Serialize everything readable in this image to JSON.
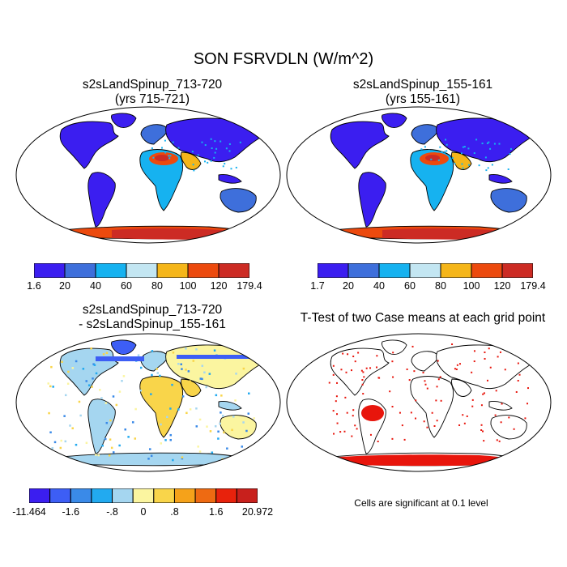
{
  "title": "SON FSRVDLN (W/m^2)",
  "panels": [
    {
      "id": "p1",
      "title_line1": "s2sLandSpinup_713-720",
      "title_line2": "(yrs 715-721)",
      "field": "FSRVDLN case 1"
    },
    {
      "id": "p2",
      "title_line1": "s2sLandSpinup_155-161",
      "title_line2": "(yrs 155-161)",
      "field": "FSRVDLN case 2"
    },
    {
      "id": "p3",
      "title_line1": "s2sLandSpinup_713-720",
      "title_line2": "- s2sLandSpinup_155-161",
      "field": "difference"
    },
    {
      "id": "p4",
      "title_line1": "T-Test of two Case means at each grid point",
      "title_line2": "",
      "field": "significance"
    }
  ],
  "colorbars": {
    "cb1": {
      "colors": [
        "#3b1ef0",
        "#3e6fdb",
        "#16b2f0",
        "#c3e6f2",
        "#f5b61a",
        "#ec4a0e",
        "#cc2b24"
      ],
      "labels": [
        "1.6",
        "20",
        "40",
        "60",
        "80",
        "100",
        "120",
        "179.4"
      ]
    },
    "cb2": {
      "colors": [
        "#3b1ef0",
        "#3e6fdb",
        "#16b2f0",
        "#c3e6f2",
        "#f5b61a",
        "#ec4a0e",
        "#cc2b24"
      ],
      "labels": [
        "1.7",
        "20",
        "40",
        "60",
        "80",
        "100",
        "120",
        "179.4"
      ]
    },
    "cb3": {
      "colors": [
        "#3b1ef0",
        "#3d5ef5",
        "#3a8ae8",
        "#22aaf0",
        "#a5d6f0",
        "#fbf5a0",
        "#f9d54a",
        "#f5a21a",
        "#ee6a12",
        "#e8220c",
        "#c8201c"
      ],
      "labels": [
        "-11.464",
        "-1.6",
        "-.8",
        "0",
        ".8",
        "1.6",
        "20.972"
      ]
    }
  },
  "note": "Cells are significant at 0.1 level"
}
